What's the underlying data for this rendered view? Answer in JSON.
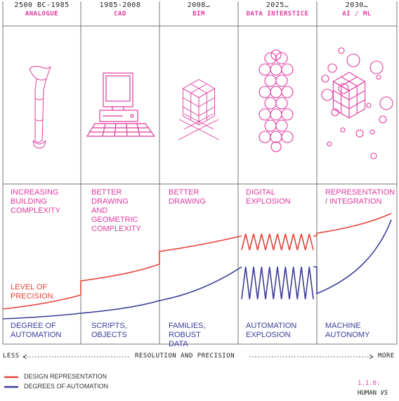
{
  "eras": [
    {
      "year": "2500 BC-1985",
      "name": "ANALOGUE",
      "description": "INCREASING\nBUILDING\nCOMPLEXITY",
      "automation": "DEGREE OF\nAUTOMATION"
    },
    {
      "year": "1985-2008",
      "name": "CAD",
      "description": "BETTER\nDRAWING\nAND\nGEOMETRIC\nCOMPLEXITY",
      "automation": "SCRIPTS,\nOBJECTS"
    },
    {
      "year": "2008…",
      "name": "BIM",
      "description": "BETTER\nDRAWING",
      "automation": "FAMILIES,\nROBUST\nDATA"
    },
    {
      "year": "2025…",
      "name": "DATA INTERSTICE",
      "description": "DIGITAL\nEXPLOSION",
      "automation": "AUTOMATION\nEXPLOSION"
    },
    {
      "year": "2030…",
      "name": "AI / ML",
      "description": "REPRESENTATION\n/ INTEGRATION",
      "automation": "MACHINE\nAUTONOMY"
    }
  ],
  "precision_label": "LEVEL OF\nPRECISION",
  "axis": {
    "left": "LESS",
    "center": "RESOLUTION AND PRECISION",
    "right": "MORE"
  },
  "legend": [
    {
      "label": "DESIGN REPRESENTATION",
      "color": "#e8423a"
    },
    {
      "label": "DEGREES OF AUTOMATION",
      "color": "#3b3c9a"
    }
  ],
  "figure_ref": {
    "number": "1.1.6:",
    "title": "HUMAN",
    "title_italic": "VS"
  },
  "colors": {
    "accent": "#e0399e",
    "representation": "#e8423a",
    "automation": "#3b3c9a"
  },
  "icons": [
    "scroll-icon",
    "computer-icon",
    "bim-cube-icon",
    "bubble-column-icon",
    "ai-cube-bubbles-icon"
  ]
}
